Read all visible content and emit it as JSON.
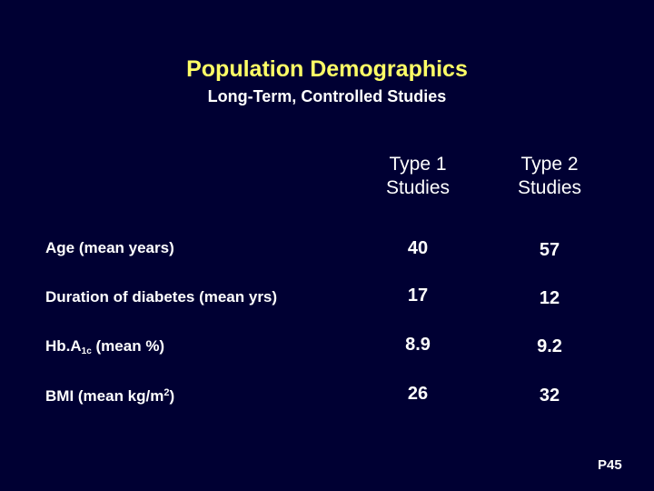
{
  "title": "Population Demographics",
  "subtitle": "Long-Term, Controlled Studies",
  "columns": [
    {
      "line1": "Type 1",
      "line2": "Studies"
    },
    {
      "line1": "Type 2",
      "line2": "Studies"
    }
  ],
  "rows": [
    {
      "label": "Age (mean years)",
      "type1": "40",
      "type2": "57"
    },
    {
      "label": "Duration of diabetes (mean yrs)",
      "type1": "17",
      "type2": "12"
    },
    {
      "label_main": "Hb.A",
      "label_sub": "1c",
      "label_rest": " (mean %)",
      "type1": "8.9",
      "type2": "9.2"
    },
    {
      "label_main": "BMI (mean kg/m",
      "label_sup": "2",
      "label_rest": ")",
      "type1": "26",
      "type2": "32"
    }
  ],
  "slide_number": "P45"
}
